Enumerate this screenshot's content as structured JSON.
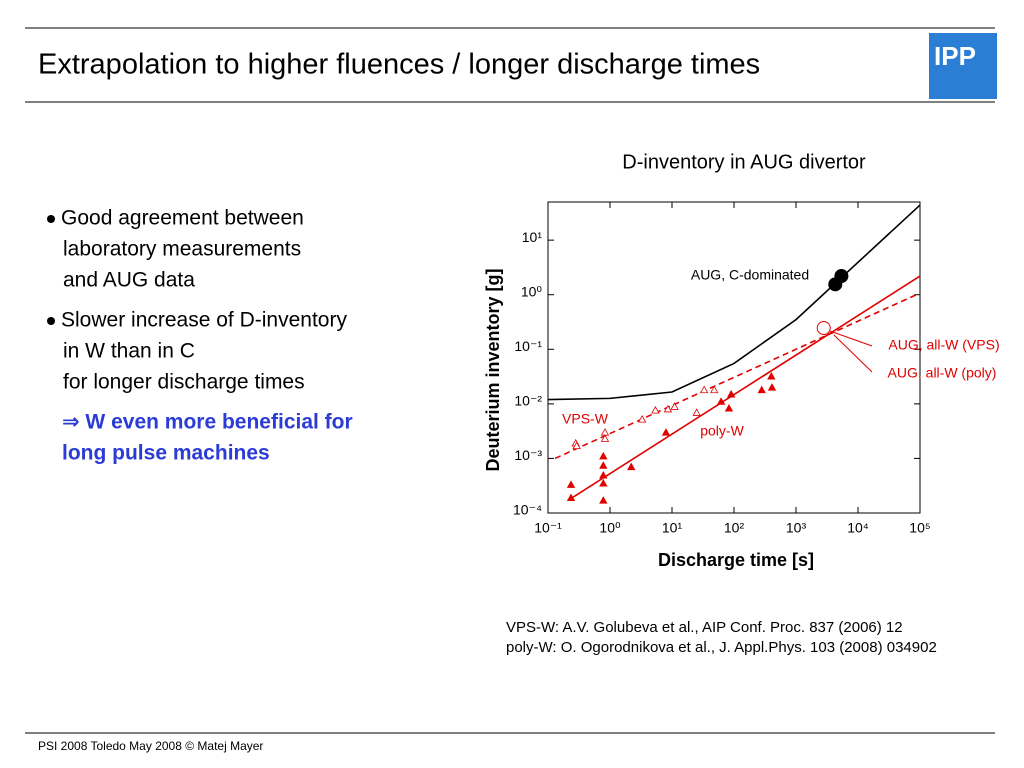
{
  "slide": {
    "title": "Extrapolation to higher fluences / longer discharge times",
    "logo": "IPP",
    "bullets": [
      {
        "lines": [
          "Good agreement between",
          "laboratory measurements",
          "and AUG data"
        ]
      },
      {
        "lines": [
          "Slower increase of D-inventory",
          "in W than in C",
          "for longer discharge times"
        ]
      }
    ],
    "conclusion": [
      "⇒ W even more beneficial for",
      "long pulse machines"
    ],
    "references": [
      "VPS-W: A.V. Golubeva et al., AIP Conf. Proc. 837 (2006) 12",
      "poly-W: O. Ogorodnikova et al., J. Appl.Phys. 103 (2008) 034902"
    ],
    "footer": "PSI 2008 Toledo May 2008 © Matej Mayer"
  },
  "chart_data": {
    "type": "scatter",
    "title": "D-inventory in AUG divertor",
    "x_label": "Discharge time [s]",
    "y_label": "Deuterium inventory [g]",
    "log_x": true,
    "log_y": true,
    "xlim": [
      0.1,
      100000
    ],
    "ylim": [
      0.0001,
      50
    ],
    "xticks": [
      {
        "value": 0.1,
        "label": "10⁻¹"
      },
      {
        "value": 1,
        "label": "10⁰"
      },
      {
        "value": 10,
        "label": "10¹"
      },
      {
        "value": 100,
        "label": "10²"
      },
      {
        "value": 1000,
        "label": "10³"
      },
      {
        "value": 10000,
        "label": "10⁴"
      },
      {
        "value": 100000,
        "label": "10⁵"
      }
    ],
    "yticks": [
      {
        "value": 0.0001,
        "label": "10⁻⁴"
      },
      {
        "value": 0.001,
        "label": "10⁻³"
      },
      {
        "value": 0.01,
        "label": "10⁻²"
      },
      {
        "value": 0.1,
        "label": "10⁻¹"
      },
      {
        "value": 1,
        "label": "10⁰"
      },
      {
        "value": 10,
        "label": "10¹"
      }
    ],
    "series": [
      {
        "style": "line",
        "color": "#000000",
        "x": [
          0.1,
          1,
          10,
          100,
          1000,
          100000
        ],
        "values": [
          0.012,
          0.0126,
          0.0165,
          0.055,
          0.35,
          44
        ]
      },
      {
        "style": "line",
        "color": "#e00000",
        "x": [
          0.21,
          100000
        ],
        "values": [
          0.00017,
          2.2
        ]
      },
      {
        "style": "dashed",
        "color": "#e00000",
        "x": [
          0.13,
          100000
        ],
        "values": [
          0.001,
          1.07
        ]
      },
      {
        "style": "marker",
        "marker": "circle-filled",
        "color": "#000000",
        "x": [
          4300,
          5400
        ],
        "values": [
          1.55,
          2.2
        ]
      },
      {
        "style": "marker",
        "marker": "circle-open",
        "color": "#e00000",
        "x": [
          2800
        ],
        "values": [
          0.245
        ]
      },
      {
        "style": "marker",
        "marker": "triangle-filled",
        "color": "#e00000",
        "x": [
          0.235,
          0.235,
          0.78,
          0.78,
          0.78,
          0.78,
          0.78,
          2.2,
          8,
          62,
          83,
          90,
          280,
          410,
          400
        ],
        "values": [
          0.00033,
          0.00019,
          0.0011,
          0.00074,
          0.00049,
          0.00035,
          0.00017,
          0.0007,
          0.003,
          0.011,
          0.0083,
          0.015,
          0.018,
          0.02,
          0.032
        ]
      },
      {
        "style": "marker",
        "marker": "triangle-open",
        "color": "#e00000",
        "x": [
          0.28,
          0.29,
          0.83,
          0.83,
          3.3,
          5.4,
          8.6,
          11,
          25,
          33,
          48
        ],
        "values": [
          0.0019,
          0.0017,
          0.003,
          0.0023,
          0.0052,
          0.0076,
          0.008,
          0.0089,
          0.0069,
          0.018,
          0.018
        ]
      }
    ],
    "annotations": [
      {
        "text": "AUG, C-dominated",
        "color": "#000000"
      },
      {
        "text": "AUG, all-W (VPS)",
        "color": "#e00000"
      },
      {
        "text": "AUG, all-W (poly)",
        "color": "#e00000"
      },
      {
        "text": "VPS-W",
        "color": "#e00000"
      },
      {
        "text": "poly-W",
        "color": "#e00000"
      }
    ]
  }
}
